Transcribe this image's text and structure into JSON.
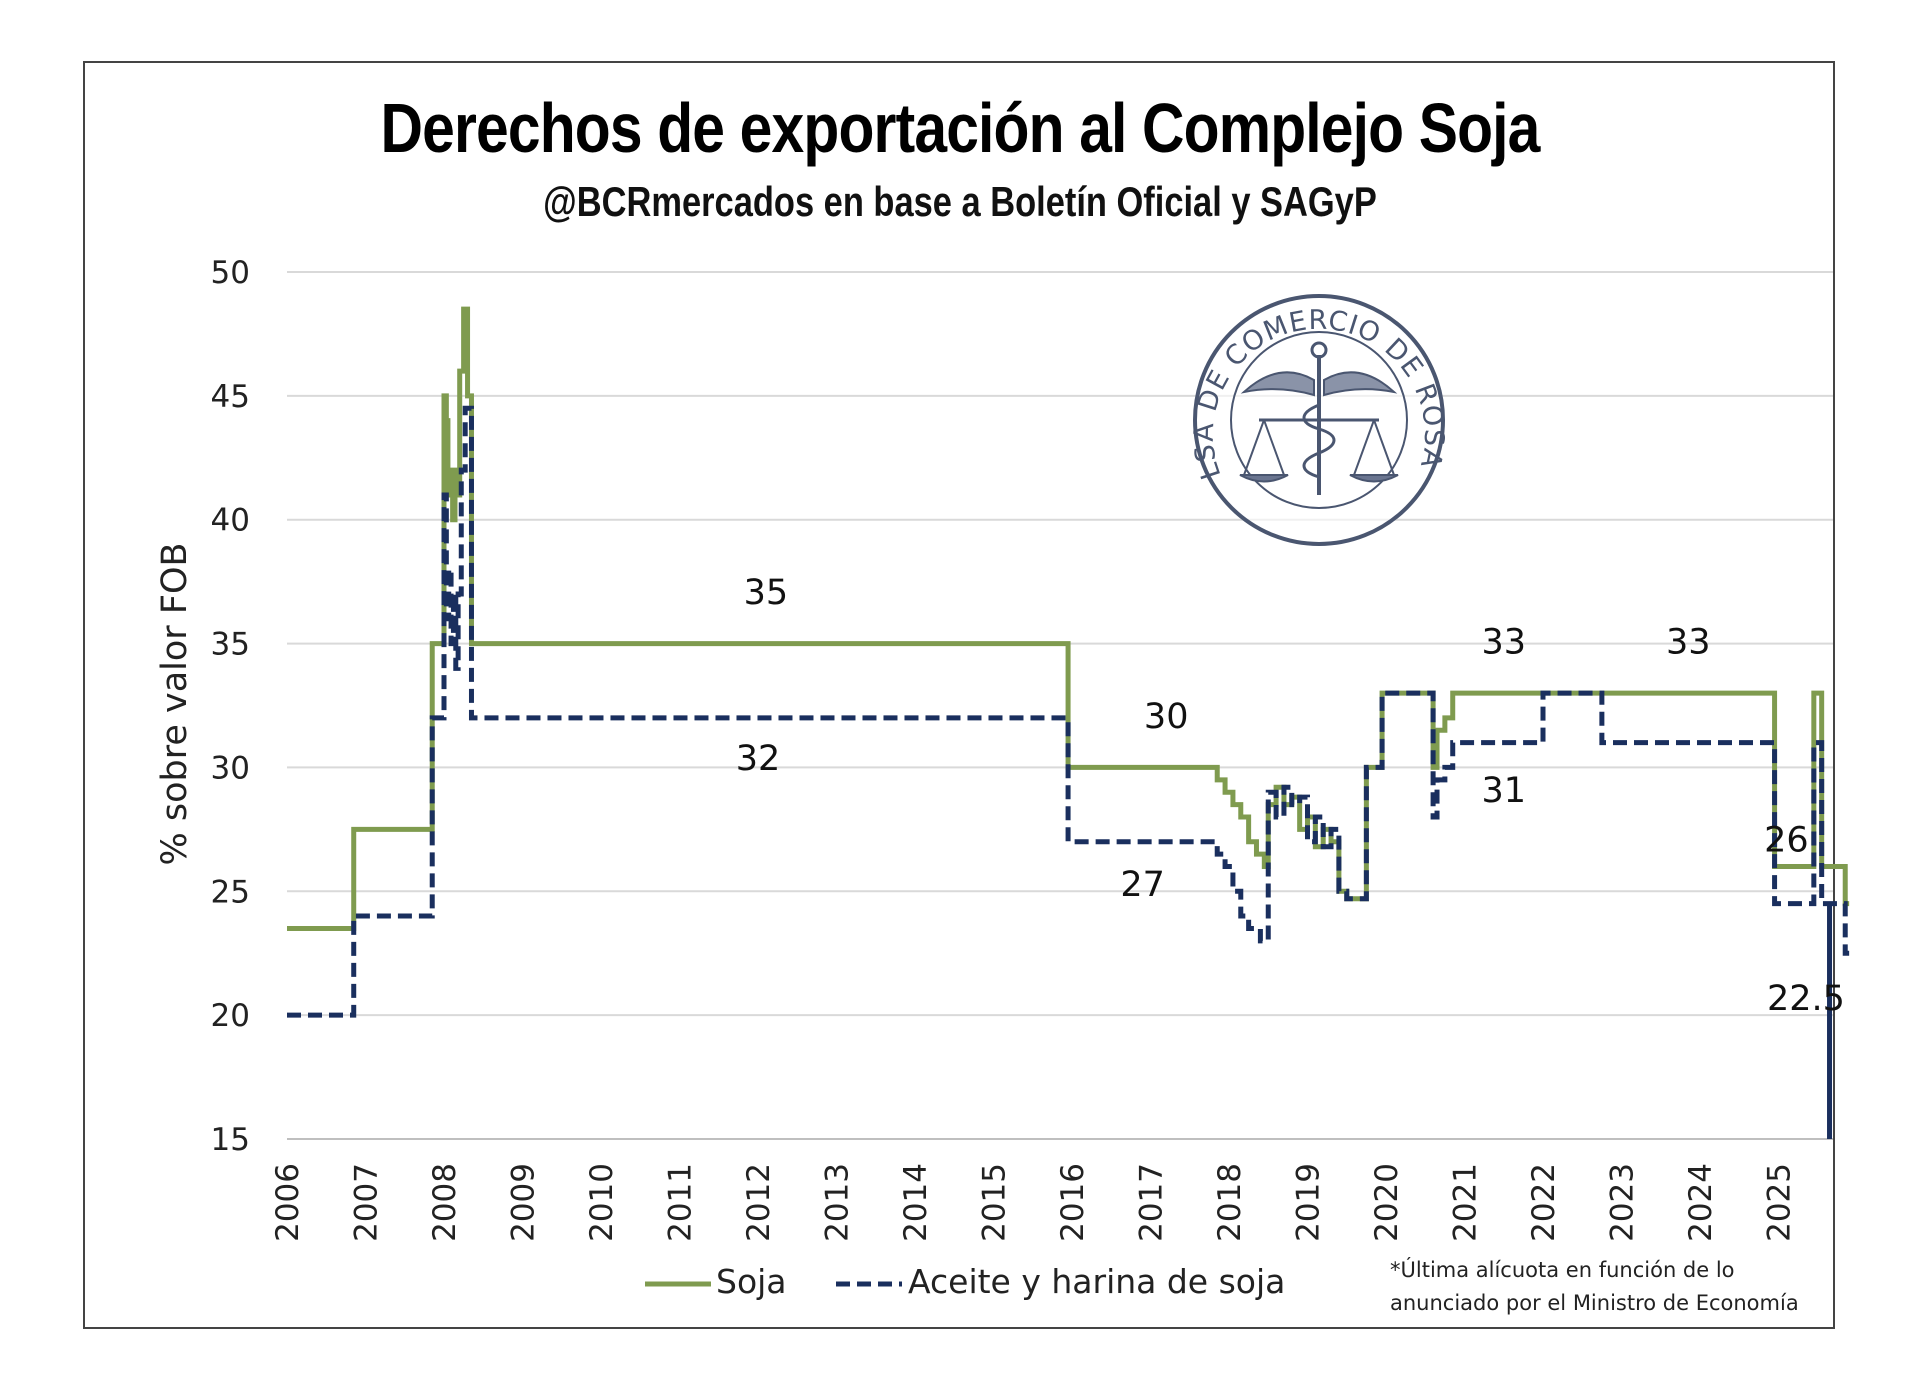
{
  "chart_data": {
    "type": "line",
    "title": "Derechos de exportación al Complejo Soja",
    "subtitle": "@BCRmercados en base a Boletín Oficial y SAGyP",
    "ylabel": "% sobre valor FOB",
    "xlabel": "",
    "xlim": [
      2006,
      2025.9
    ],
    "ylim": [
      15,
      50
    ],
    "yticks": [
      "15",
      "20",
      "25",
      "30",
      "35",
      "40",
      "45",
      "50"
    ],
    "xticks": [
      "2006",
      "2007",
      "2008",
      "2009",
      "2010",
      "2011",
      "2012",
      "2013",
      "2014",
      "2015",
      "2016",
      "2017",
      "2018",
      "2019",
      "2020",
      "2021",
      "2022",
      "2023",
      "2024",
      "2025"
    ],
    "grid": "horizontal",
    "legend_position": "bottom",
    "colors": {
      "soja": "#7f9b4f",
      "aceite": "#1a2f5e",
      "grid": "#d9d9d9"
    },
    "series": [
      {
        "name": "Soja",
        "style": "solid",
        "points": [
          [
            2006.0,
            23.5
          ],
          [
            2006.85,
            27.5
          ],
          [
            2007.85,
            35
          ],
          [
            2007.97,
            35
          ],
          [
            2008.0,
            45
          ],
          [
            2008.03,
            44
          ],
          [
            2008.05,
            41
          ],
          [
            2008.08,
            42
          ],
          [
            2008.11,
            40
          ],
          [
            2008.14,
            42
          ],
          [
            2008.17,
            41
          ],
          [
            2008.2,
            46
          ],
          [
            2008.25,
            48.5
          ],
          [
            2008.3,
            45
          ],
          [
            2008.35,
            35
          ],
          [
            2015.95,
            30
          ],
          [
            2017.85,
            29.5
          ],
          [
            2017.95,
            29
          ],
          [
            2018.05,
            28.5
          ],
          [
            2018.15,
            28
          ],
          [
            2018.25,
            27
          ],
          [
            2018.35,
            26.5
          ],
          [
            2018.45,
            26
          ],
          [
            2018.5,
            28.5
          ],
          [
            2018.6,
            29.2
          ],
          [
            2018.7,
            28.5
          ],
          [
            2018.8,
            28.8
          ],
          [
            2018.9,
            27.5
          ],
          [
            2019.0,
            28
          ],
          [
            2019.1,
            26.8
          ],
          [
            2019.2,
            27.5
          ],
          [
            2019.3,
            27
          ],
          [
            2019.4,
            25
          ],
          [
            2019.5,
            24.7
          ],
          [
            2019.75,
            30
          ],
          [
            2019.95,
            33
          ],
          [
            2020.6,
            30
          ],
          [
            2020.65,
            31.5
          ],
          [
            2020.75,
            32
          ],
          [
            2020.85,
            33
          ],
          [
            2024.95,
            26
          ],
          [
            2025.45,
            33
          ],
          [
            2025.55,
            26
          ],
          [
            2025.85,
            24.5
          ],
          [
            2025.9,
            24.5
          ]
        ]
      },
      {
        "name": "Aceite y harina de soja",
        "style": "dashed",
        "points": [
          [
            2006.0,
            20
          ],
          [
            2006.85,
            24
          ],
          [
            2007.85,
            32
          ],
          [
            2008.0,
            41
          ],
          [
            2008.03,
            36
          ],
          [
            2008.06,
            38
          ],
          [
            2008.09,
            35
          ],
          [
            2008.12,
            37
          ],
          [
            2008.15,
            34
          ],
          [
            2008.18,
            37
          ],
          [
            2008.22,
            42
          ],
          [
            2008.27,
            44.5
          ],
          [
            2008.35,
            32
          ],
          [
            2015.95,
            27
          ],
          [
            2017.85,
            26.5
          ],
          [
            2017.95,
            26
          ],
          [
            2018.05,
            25
          ],
          [
            2018.15,
            24
          ],
          [
            2018.25,
            23.5
          ],
          [
            2018.4,
            23
          ],
          [
            2018.5,
            29
          ],
          [
            2018.6,
            28
          ],
          [
            2018.7,
            29.2
          ],
          [
            2018.8,
            28.5
          ],
          [
            2018.9,
            28.8
          ],
          [
            2019.0,
            27
          ],
          [
            2019.1,
            28
          ],
          [
            2019.2,
            26.8
          ],
          [
            2019.3,
            27.5
          ],
          [
            2019.4,
            25
          ],
          [
            2019.5,
            24.7
          ],
          [
            2019.75,
            30
          ],
          [
            2019.95,
            33
          ],
          [
            2020.6,
            28
          ],
          [
            2020.65,
            29.5
          ],
          [
            2020.75,
            30
          ],
          [
            2020.85,
            31
          ],
          [
            2022.0,
            33
          ],
          [
            2022.75,
            31
          ],
          [
            2024.95,
            24.5
          ],
          [
            2025.45,
            31
          ],
          [
            2025.55,
            24.5
          ],
          [
            2025.85,
            22.5
          ],
          [
            2025.9,
            22.5
          ]
        ]
      }
    ],
    "extra_line": {
      "x": 2025.65,
      "y_from": 24.5,
      "y_to": 15,
      "color": "#1a2f5e"
    },
    "data_labels": [
      {
        "text": "35",
        "x": 2012.1,
        "y": 36.6
      },
      {
        "text": "32",
        "x": 2012.0,
        "y": 29.9
      },
      {
        "text": "30",
        "x": 2017.2,
        "y": 31.6
      },
      {
        "text": "27",
        "x": 2016.9,
        "y": 24.8
      },
      {
        "text": "33",
        "x": 2021.5,
        "y": 34.6
      },
      {
        "text": "33",
        "x": 2023.85,
        "y": 34.6
      },
      {
        "text": "31",
        "x": 2021.5,
        "y": 28.6
      },
      {
        "text": "26",
        "x": 2025.1,
        "y": 26.6
      },
      {
        "text": "22.5",
        "x": 2025.35,
        "y": 20.2
      }
    ],
    "footnote": [
      "*Última alícuota en función de lo",
      "anunciado por el Ministro de Economía"
    ]
  },
  "logo": {
    "text": "BOLSA DE COMERCIO DE ROSARIO"
  }
}
